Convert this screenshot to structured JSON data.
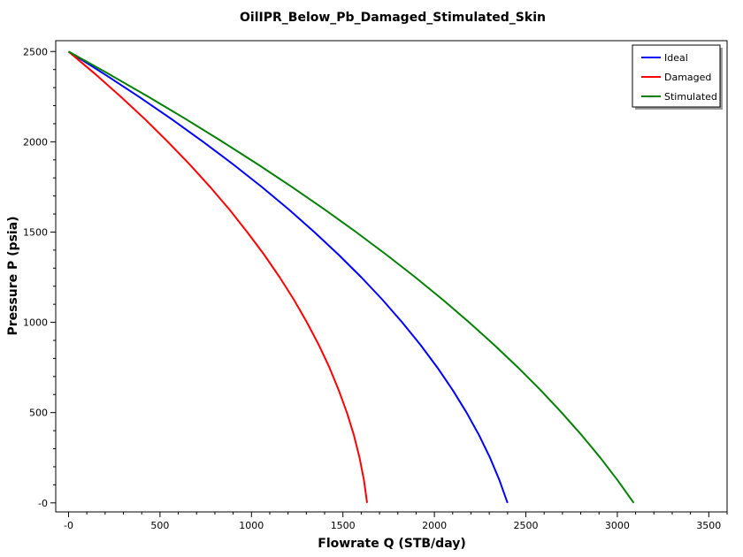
{
  "chart_data": {
    "type": "line",
    "title": "OilIPR_Below_Pb_Damaged_Stimulated_Skin",
    "xlabel": "Flowrate Q (STB/day)",
    "ylabel": "Pressure P (psia)",
    "xlim": [
      -70,
      3600
    ],
    "ylim": [
      -50,
      2560
    ],
    "xticks": [
      0,
      500,
      1000,
      1500,
      2000,
      2500,
      3000,
      3500
    ],
    "xtick_labels": [
      "-0",
      "500",
      "1000",
      "1500",
      "2000",
      "2500",
      "3000",
      "3500"
    ],
    "yticks": [
      0,
      500,
      1000,
      1500,
      2000,
      2500
    ],
    "ytick_labels": [
      "-0",
      "500",
      "1000",
      "1500",
      "2000",
      "2500"
    ],
    "grid": false,
    "legend_position": "top-right",
    "series": [
      {
        "name": "Ideal",
        "color": "#0000ff",
        "points": [
          [
            0,
            2500
          ],
          [
            196,
            2375
          ],
          [
            384,
            2250
          ],
          [
            564,
            2125
          ],
          [
            736,
            2000
          ],
          [
            900,
            1875
          ],
          [
            1056,
            1750
          ],
          [
            1204,
            1625
          ],
          [
            1344,
            1500
          ],
          [
            1476,
            1375
          ],
          [
            1600,
            1250
          ],
          [
            1716,
            1125
          ],
          [
            1824,
            1000
          ],
          [
            1924,
            875
          ],
          [
            2016,
            750
          ],
          [
            2100,
            625
          ],
          [
            2176,
            500
          ],
          [
            2244,
            375
          ],
          [
            2304,
            250
          ],
          [
            2356,
            125
          ],
          [
            2400,
            0
          ]
        ]
      },
      {
        "name": "Damaged",
        "color": "#ff0000",
        "points": [
          [
            0,
            2500
          ],
          [
            146,
            2375
          ],
          [
            285,
            2250
          ],
          [
            418,
            2125
          ],
          [
            543,
            2000
          ],
          [
            662,
            1875
          ],
          [
            774,
            1750
          ],
          [
            879,
            1625
          ],
          [
            977,
            1500
          ],
          [
            1069,
            1375
          ],
          [
            1154,
            1250
          ],
          [
            1232,
            1125
          ],
          [
            1303,
            1000
          ],
          [
            1368,
            875
          ],
          [
            1426,
            750
          ],
          [
            1477,
            625
          ],
          [
            1522,
            500
          ],
          [
            1560,
            375
          ],
          [
            1591,
            250
          ],
          [
            1615,
            125
          ],
          [
            1632,
            0
          ]
        ]
      },
      {
        "name": "Stimulated",
        "color": "#008000",
        "points": [
          [
            0,
            2500
          ],
          [
            221,
            2375
          ],
          [
            435,
            2250
          ],
          [
            642,
            2125
          ],
          [
            842,
            2000
          ],
          [
            1035,
            1875
          ],
          [
            1221,
            1750
          ],
          [
            1400,
            1625
          ],
          [
            1572,
            1500
          ],
          [
            1737,
            1375
          ],
          [
            1895,
            1250
          ],
          [
            2046,
            1125
          ],
          [
            2190,
            1000
          ],
          [
            2327,
            875
          ],
          [
            2457,
            750
          ],
          [
            2580,
            625
          ],
          [
            2696,
            500
          ],
          [
            2805,
            375
          ],
          [
            2907,
            250
          ],
          [
            3002,
            125
          ],
          [
            3090,
            0
          ]
        ]
      }
    ]
  }
}
